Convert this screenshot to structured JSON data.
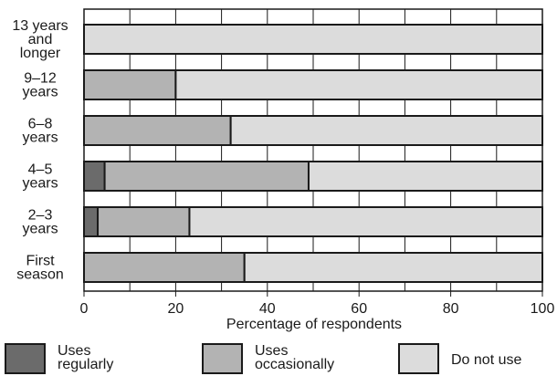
{
  "chart_data": {
    "type": "bar",
    "orientation": "horizontal",
    "stacked": true,
    "categories": [
      [
        "13 years",
        "and",
        "longer"
      ],
      [
        "9–12",
        "years"
      ],
      [
        "6–8",
        "years"
      ],
      [
        "4–5",
        "years"
      ],
      [
        "2–3",
        "years"
      ],
      [
        "First",
        "season"
      ]
    ],
    "series": [
      {
        "name": "Uses regularly",
        "legend_lines": [
          "Uses",
          "regularly"
        ],
        "color": "#6b6b6b",
        "values": [
          0,
          0,
          0,
          4.5,
          3,
          0
        ]
      },
      {
        "name": "Uses occasionally",
        "legend_lines": [
          "Uses",
          "occasionally"
        ],
        "color": "#b3b3b3",
        "values": [
          0,
          20,
          32,
          44.5,
          20,
          35
        ]
      },
      {
        "name": "Do not use",
        "legend_lines": [
          "Do not use"
        ],
        "color": "#dcdcdc",
        "values": [
          100,
          80,
          68,
          51,
          77,
          65
        ]
      }
    ],
    "xlabel": "Percentage of respondents",
    "ylabel": "",
    "xlim": [
      0,
      100
    ],
    "xticks": [
      0,
      20,
      40,
      60,
      80,
      100
    ],
    "grid": true,
    "legend_placement": "bottom"
  }
}
